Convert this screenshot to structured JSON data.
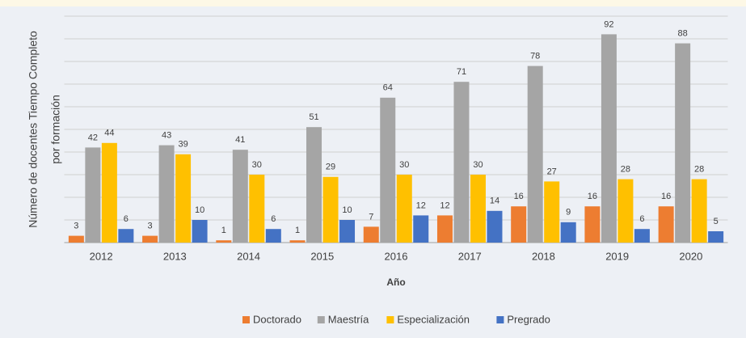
{
  "chart_data": {
    "type": "bar",
    "y_label": [
      "Número de docentes Tiempo Completo",
      "por formación"
    ],
    "x_label": "Año",
    "categories": [
      "2012",
      "2013",
      "2014",
      "2015",
      "2016",
      "2017",
      "2018",
      "2019",
      "2020"
    ],
    "series": [
      {
        "name": "Doctorado",
        "color": "#ed7d31",
        "values": [
          3,
          3,
          1,
          1,
          7,
          12,
          16,
          16,
          16
        ]
      },
      {
        "name": "Maestría",
        "color": "#a5a5a5",
        "values": [
          42,
          43,
          41,
          51,
          64,
          71,
          78,
          92,
          88
        ]
      },
      {
        "name": "Especialización",
        "color": "#ffc000",
        "values": [
          44,
          39,
          30,
          29,
          30,
          30,
          27,
          28,
          28
        ]
      },
      {
        "name": "Pregrado",
        "color": "#4472c4",
        "values": [
          6,
          10,
          6,
          10,
          12,
          14,
          9,
          6,
          5
        ]
      }
    ],
    "ylim": [
      0,
      100
    ],
    "yticks": [
      0,
      10,
      20,
      30,
      40,
      50,
      60,
      70,
      80,
      90,
      100
    ],
    "grid": true,
    "legend": "bottom"
  }
}
